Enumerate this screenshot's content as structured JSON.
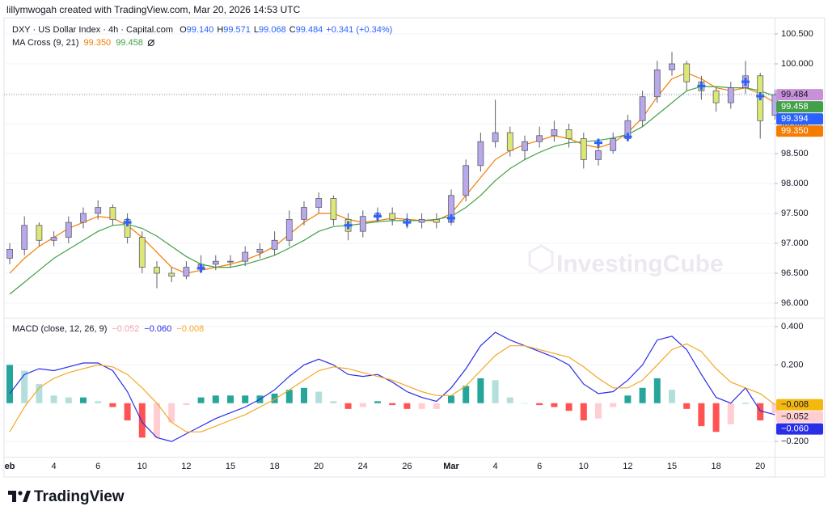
{
  "attribution": "lillymwogah created with TradingView.com, Mar 20, 2026 14:53 UTC",
  "watermark": "InvestingCube",
  "brand": "TradingView",
  "chart_data": [
    {
      "type": "candlestick",
      "title": "DXY · US Dollar Index · 4h · Capital.com",
      "ohlc_legend": [
        {
          "label": "O",
          "value": "99.140"
        },
        {
          "label": "H",
          "value": "99.571"
        },
        {
          "label": "L",
          "value": "99.068"
        },
        {
          "label": "C",
          "value": "99.484"
        }
      ],
      "change": "+0.341 (+0.34%)",
      "legend_color": "#2962ff",
      "indicator": "MA Cross (9, 21)",
      "up_color": "#b9a8ea",
      "down_color": "#dce775",
      "categories": [
        "eb",
        null,
        null,
        "4",
        null,
        null,
        "6",
        null,
        null,
        "10",
        null,
        null,
        "12",
        null,
        null,
        "15",
        null,
        null,
        "18",
        null,
        null,
        "20",
        null,
        null,
        "24",
        null,
        null,
        "26",
        null,
        null,
        "Mar",
        null,
        null,
        "4",
        null,
        null,
        "6",
        null,
        null,
        "10",
        null,
        null,
        "12",
        null,
        null,
        "15",
        null,
        null,
        "18",
        null,
        null,
        "20",
        null
      ],
      "open": [
        96.75,
        96.9,
        97.3,
        97.05,
        97.1,
        97.35,
        97.5,
        97.6,
        97.4,
        97.1,
        96.6,
        96.5,
        96.45,
        96.6,
        96.65,
        96.7,
        96.7,
        96.85,
        96.9,
        97.05,
        97.4,
        97.6,
        97.75,
        97.4,
        97.2,
        97.45,
        97.5,
        97.4,
        97.35,
        97.4,
        97.35,
        97.8,
        98.3,
        98.7,
        98.85,
        98.55,
        98.7,
        98.8,
        98.9,
        98.75,
        98.4,
        98.55,
        98.75,
        99.05,
        99.45,
        99.9,
        100.0,
        99.7,
        99.55,
        99.35,
        99.6,
        99.8,
        99.14
      ],
      "high": [
        97.0,
        97.45,
        97.35,
        97.2,
        97.45,
        97.6,
        97.72,
        97.65,
        97.5,
        97.2,
        96.7,
        96.6,
        96.7,
        96.8,
        96.8,
        96.8,
        96.95,
        97.0,
        97.2,
        97.55,
        97.7,
        97.85,
        97.8,
        97.5,
        97.55,
        97.6,
        97.6,
        97.5,
        97.5,
        97.5,
        97.9,
        98.4,
        98.85,
        99.4,
        98.95,
        98.8,
        98.95,
        99.05,
        99.0,
        98.85,
        98.65,
        98.85,
        99.15,
        99.55,
        100.05,
        100.2,
        100.05,
        99.8,
        99.6,
        99.7,
        100.05,
        99.85,
        99.571
      ],
      "low": [
        96.65,
        96.8,
        96.95,
        96.95,
        97.0,
        97.25,
        97.4,
        97.3,
        97.0,
        96.5,
        96.25,
        96.35,
        96.4,
        96.5,
        96.55,
        96.6,
        96.62,
        96.75,
        96.8,
        96.95,
        97.3,
        97.5,
        97.3,
        97.05,
        97.1,
        97.35,
        97.3,
        97.25,
        97.25,
        97.25,
        97.3,
        97.7,
        98.2,
        98.6,
        98.45,
        98.4,
        98.6,
        98.7,
        98.6,
        98.25,
        98.3,
        98.5,
        98.7,
        98.95,
        99.35,
        99.8,
        99.55,
        99.4,
        99.2,
        99.25,
        99.5,
        98.75,
        99.068
      ],
      "close": [
        96.9,
        97.3,
        97.05,
        97.1,
        97.35,
        97.5,
        97.6,
        97.4,
        97.1,
        96.6,
        96.5,
        96.45,
        96.6,
        96.65,
        96.7,
        96.7,
        96.85,
        96.9,
        97.05,
        97.4,
        97.6,
        97.75,
        97.4,
        97.2,
        97.45,
        97.5,
        97.4,
        97.35,
        97.4,
        97.35,
        97.8,
        98.3,
        98.7,
        98.85,
        98.55,
        98.7,
        98.8,
        98.9,
        98.75,
        98.4,
        98.55,
        98.75,
        99.05,
        99.45,
        99.9,
        100.0,
        99.7,
        99.55,
        99.35,
        99.6,
        99.8,
        99.05,
        99.484
      ],
      "series": [
        {
          "legend_value": "99.350",
          "color": "#f57c00",
          "values": [
            96.5,
            96.75,
            96.95,
            97.1,
            97.25,
            97.35,
            97.45,
            97.42,
            97.3,
            97.1,
            96.85,
            96.6,
            96.5,
            96.55,
            96.6,
            96.65,
            96.72,
            96.82,
            96.95,
            97.15,
            97.35,
            97.5,
            97.5,
            97.4,
            97.35,
            97.38,
            97.42,
            97.4,
            97.38,
            97.38,
            97.5,
            97.8,
            98.1,
            98.4,
            98.55,
            98.65,
            98.72,
            98.8,
            98.75,
            98.65,
            98.6,
            98.68,
            98.85,
            99.1,
            99.45,
            99.75,
            99.85,
            99.75,
            99.6,
            99.55,
            99.6,
            99.5,
            99.35
          ]
        },
        {
          "legend_value": "99.458",
          "color": "#43a047",
          "values": [
            96.15,
            96.35,
            96.55,
            96.75,
            96.9,
            97.05,
            97.2,
            97.3,
            97.32,
            97.25,
            97.12,
            96.95,
            96.78,
            96.65,
            96.6,
            96.6,
            96.65,
            96.72,
            96.8,
            96.92,
            97.05,
            97.2,
            97.28,
            97.3,
            97.33,
            97.36,
            97.38,
            97.38,
            97.38,
            97.4,
            97.45,
            97.6,
            97.8,
            98.05,
            98.25,
            98.4,
            98.52,
            98.62,
            98.68,
            98.7,
            98.72,
            98.76,
            98.82,
            98.95,
            99.15,
            99.35,
            99.55,
            99.62,
            99.62,
            99.6,
            99.6,
            99.55,
            99.458
          ]
        }
      ],
      "crosses": {
        "color": "#2962ff",
        "values": [
          null,
          null,
          null,
          null,
          null,
          null,
          null,
          null,
          97.35,
          null,
          null,
          null,
          null,
          96.58,
          null,
          null,
          null,
          null,
          null,
          null,
          null,
          null,
          null,
          97.3,
          null,
          97.45,
          null,
          97.35,
          null,
          null,
          97.42,
          null,
          null,
          null,
          null,
          null,
          null,
          null,
          null,
          null,
          98.68,
          null,
          98.78,
          null,
          null,
          null,
          null,
          99.63,
          null,
          null,
          99.7,
          99.46,
          null
        ]
      },
      "ylim": [
        95.77,
        100.77
      ],
      "yticks": [
        {
          "value": 96.0,
          "label": "96.000"
        },
        {
          "value": 96.5,
          "label": "96.500"
        },
        {
          "value": 97.0,
          "label": "97.000"
        },
        {
          "value": 97.5,
          "label": "97.500"
        },
        {
          "value": 98.0,
          "label": "98.000"
        },
        {
          "value": 98.5,
          "label": "98.500"
        },
        {
          "value": 99.0,
          "label": "99.000"
        },
        {
          "value": 99.5,
          "label": "99.500"
        },
        {
          "value": 100.0,
          "label": "100.000"
        },
        {
          "value": 100.5,
          "label": "100.500"
        }
      ],
      "grid": true,
      "price_labels": [
        {
          "value": 99.484,
          "label": "99.484",
          "color": "#c990da",
          "text_color": "#131722"
        },
        {
          "value": 99.458,
          "label": "99.458",
          "color": "#43a047",
          "text_color": "#ffffff"
        },
        {
          "value": 99.394,
          "label": "99.394",
          "color": "#2962ff",
          "text_color": "#ffffff"
        },
        {
          "value": 99.35,
          "label": "99.350",
          "color": "#f57c00",
          "text_color": "#ffffff"
        }
      ]
    },
    {
      "type": "macd",
      "title": "MACD (close, 12, 26, 9)",
      "legend_values": [
        {
          "label": "−0.052",
          "color": "#f7a1ad"
        },
        {
          "label": "−0.060",
          "color": "#2a2ee8"
        },
        {
          "label": "−0.008",
          "color": "#f5a623"
        }
      ],
      "histogram": {
        "colors": [
          "#26a69a",
          "#b2dfdb",
          "#ff5252",
          "#ffcdd2"
        ],
        "values": [
          0.2,
          0.17,
          0.1,
          0.04,
          0.03,
          0.03,
          0.01,
          -0.02,
          -0.09,
          -0.18,
          -0.18,
          -0.1,
          -0.01,
          0.03,
          0.04,
          0.04,
          0.04,
          0.04,
          0.05,
          0.07,
          0.08,
          0.06,
          0.01,
          -0.03,
          -0.02,
          0.01,
          -0.01,
          -0.03,
          -0.03,
          -0.03,
          0.04,
          0.09,
          0.13,
          0.12,
          0.03,
          0.0,
          -0.01,
          -0.02,
          -0.04,
          -0.09,
          -0.08,
          -0.02,
          0.04,
          0.08,
          0.13,
          0.07,
          -0.03,
          -0.12,
          -0.15,
          -0.11,
          0.0,
          -0.09,
          -0.052
        ]
      },
      "series": [
        {
          "color": "#2a2ee8",
          "values": [
            0.05,
            0.15,
            0.18,
            0.17,
            0.19,
            0.21,
            0.21,
            0.17,
            0.06,
            -0.1,
            -0.18,
            -0.2,
            -0.16,
            -0.12,
            -0.08,
            -0.05,
            -0.02,
            0.02,
            0.07,
            0.14,
            0.2,
            0.23,
            0.2,
            0.15,
            0.14,
            0.15,
            0.11,
            0.06,
            0.03,
            0.01,
            0.08,
            0.18,
            0.3,
            0.37,
            0.33,
            0.3,
            0.27,
            0.24,
            0.2,
            0.1,
            0.05,
            0.06,
            0.12,
            0.2,
            0.33,
            0.35,
            0.28,
            0.15,
            0.03,
            0.0,
            0.08,
            -0.04,
            -0.06
          ]
        },
        {
          "color": "#f5a623",
          "values": [
            -0.15,
            -0.02,
            0.08,
            0.13,
            0.16,
            0.18,
            0.2,
            0.19,
            0.15,
            0.08,
            0.0,
            -0.1,
            -0.15,
            -0.15,
            -0.12,
            -0.09,
            -0.06,
            -0.02,
            0.02,
            0.07,
            0.12,
            0.17,
            0.19,
            0.18,
            0.16,
            0.14,
            0.12,
            0.09,
            0.06,
            0.04,
            0.04,
            0.09,
            0.17,
            0.25,
            0.3,
            0.3,
            0.28,
            0.26,
            0.24,
            0.19,
            0.13,
            0.08,
            0.08,
            0.12,
            0.2,
            0.28,
            0.31,
            0.27,
            0.18,
            0.11,
            0.08,
            0.05,
            -0.008
          ]
        }
      ],
      "ylim": [
        -0.28,
        0.434
      ],
      "yticks": [
        {
          "value": 0.4,
          "label": "0.400"
        },
        {
          "value": 0.2,
          "label": "0.200"
        },
        {
          "value": -0.2,
          "label": "−0.200"
        }
      ],
      "grid": true,
      "price_labels": [
        {
          "value": -0.008,
          "label": "−0.008",
          "color": "#f5b80f",
          "text_color": "#131722"
        },
        {
          "value": -0.052,
          "label": "−0.052",
          "color": "#ffcdd2",
          "text_color": "#131722"
        },
        {
          "value": -0.06,
          "label": "−0.060",
          "color": "#2a2ee8",
          "text_color": "#ffffff"
        }
      ]
    }
  ]
}
